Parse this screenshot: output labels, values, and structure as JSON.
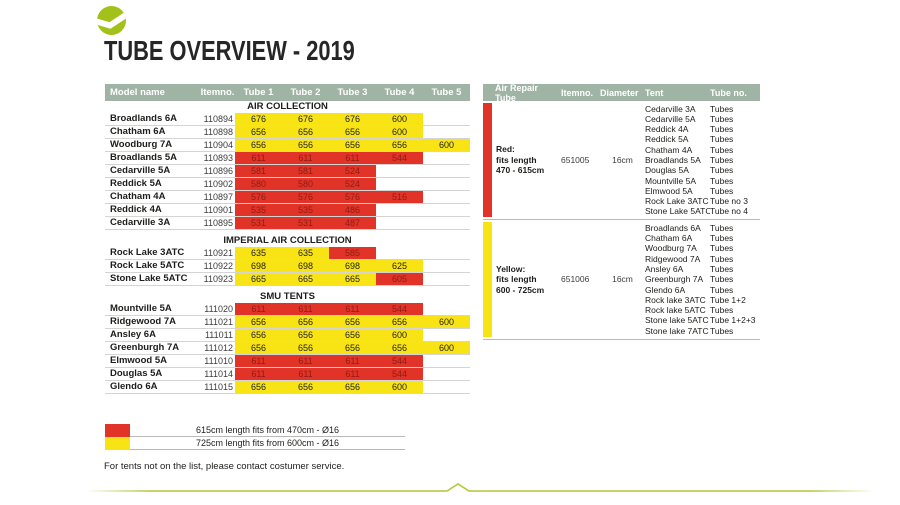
{
  "title": "TUBE OVERVIEW - 2019",
  "colors": {
    "header_bg": "#9fb4a4",
    "red": "#e13327",
    "red_text": "#8e1c13",
    "yellow": "#f8e414",
    "logo_green": "#a3c219",
    "line_green": "#b3c73a"
  },
  "left_table": {
    "headers": [
      "Model name",
      "Itemno.",
      "Tube 1",
      "Tube 2",
      "Tube 3",
      "Tube 4",
      "Tube 5"
    ],
    "sections": [
      {
        "title": "AIR COLLECTION",
        "rows": [
          {
            "model": "Broadlands 6A",
            "itemno": "110894",
            "cells": [
              [
                "676",
                "y"
              ],
              [
                "676",
                "y"
              ],
              [
                "676",
                "y"
              ],
              [
                "600",
                "y"
              ]
            ]
          },
          {
            "model": "Chatham 6A",
            "itemno": "110898",
            "cells": [
              [
                "656",
                "y"
              ],
              [
                "656",
                "y"
              ],
              [
                "656",
                "y"
              ],
              [
                "600",
                "y"
              ]
            ]
          },
          {
            "model": "Woodburg 7A",
            "itemno": "110904",
            "cells": [
              [
                "656",
                "y"
              ],
              [
                "656",
                "y"
              ],
              [
                "656",
                "y"
              ],
              [
                "656",
                "y"
              ],
              [
                "600",
                "y"
              ]
            ]
          },
          {
            "model": "Broadlands 5A",
            "itemno": "110893",
            "cells": [
              [
                "611",
                "r"
              ],
              [
                "611",
                "r"
              ],
              [
                "611",
                "r"
              ],
              [
                "544",
                "r"
              ]
            ]
          },
          {
            "model": "Cedarville 5A",
            "itemno": "110896",
            "cells": [
              [
                "581",
                "r"
              ],
              [
                "581",
                "r"
              ],
              [
                "524",
                "r"
              ]
            ]
          },
          {
            "model": "Reddick 5A",
            "itemno": "110902",
            "cells": [
              [
                "580",
                "r"
              ],
              [
                "580",
                "r"
              ],
              [
                "524",
                "r"
              ]
            ]
          },
          {
            "model": "Chatham 4A",
            "itemno": "110897",
            "cells": [
              [
                "576",
                "r"
              ],
              [
                "576",
                "r"
              ],
              [
                "576",
                "r"
              ],
              [
                "516",
                "r"
              ]
            ]
          },
          {
            "model": "Reddick 4A",
            "itemno": "110901",
            "cells": [
              [
                "535",
                "r"
              ],
              [
                "535",
                "r"
              ],
              [
                "486",
                "r"
              ]
            ]
          },
          {
            "model": "Cedarville 3A",
            "itemno": "110895",
            "cells": [
              [
                "531",
                "r"
              ],
              [
                "531",
                "r"
              ],
              [
                "487",
                "r"
              ]
            ]
          }
        ]
      },
      {
        "title": "IMPERIAL AIR COLLECTION",
        "rows": [
          {
            "model": "Rock Lake 3ATC",
            "itemno": "110921",
            "cells": [
              [
                "635",
                "y"
              ],
              [
                "635",
                "y"
              ],
              [
                "585",
                "r"
              ]
            ]
          },
          {
            "model": "Rock Lake 5ATC",
            "itemno": "110922",
            "cells": [
              [
                "698",
                "y"
              ],
              [
                "698",
                "y"
              ],
              [
                "698",
                "y"
              ],
              [
                "625",
                "y"
              ]
            ]
          },
          {
            "model": "Stone Lake 5ATC",
            "itemno": "110923",
            "cells": [
              [
                "665",
                "y"
              ],
              [
                "665",
                "y"
              ],
              [
                "665",
                "y"
              ],
              [
                "605",
                "r"
              ]
            ]
          }
        ]
      },
      {
        "title": "SMU TENTS",
        "rows": [
          {
            "model": "Mountville 5A",
            "itemno": "111020",
            "cells": [
              [
                "611",
                "r"
              ],
              [
                "611",
                "r"
              ],
              [
                "611",
                "r"
              ],
              [
                "544",
                "r"
              ]
            ]
          },
          {
            "model": "Ridgewood 7A",
            "itemno": "111021",
            "cells": [
              [
                "656",
                "y"
              ],
              [
                "656",
                "y"
              ],
              [
                "656",
                "y"
              ],
              [
                "656",
                "y"
              ],
              [
                "600",
                "y"
              ]
            ]
          },
          {
            "model": "Ansley 6A",
            "itemno": "111011",
            "cells": [
              [
                "656",
                "y"
              ],
              [
                "656",
                "y"
              ],
              [
                "656",
                "y"
              ],
              [
                "600",
                "y"
              ]
            ]
          },
          {
            "model": "Greenburgh 7A",
            "itemno": "111012",
            "cells": [
              [
                "656",
                "y"
              ],
              [
                "656",
                "y"
              ],
              [
                "656",
                "y"
              ],
              [
                "656",
                "y"
              ],
              [
                "600",
                "y"
              ]
            ]
          },
          {
            "model": "Elmwood 5A",
            "itemno": "111010",
            "cells": [
              [
                "611",
                "r"
              ],
              [
                "611",
                "r"
              ],
              [
                "611",
                "r"
              ],
              [
                "544",
                "r"
              ]
            ]
          },
          {
            "model": "Douglas 5A",
            "itemno": "111014",
            "cells": [
              [
                "611",
                "r"
              ],
              [
                "611",
                "r"
              ],
              [
                "611",
                "r"
              ],
              [
                "544",
                "r"
              ]
            ]
          },
          {
            "model": "Glendo 6A",
            "itemno": "111015",
            "cells": [
              [
                "656",
                "y"
              ],
              [
                "656",
                "y"
              ],
              [
                "656",
                "y"
              ],
              [
                "600",
                "y"
              ]
            ]
          }
        ]
      }
    ]
  },
  "right_table": {
    "headers": [
      "Air Repair Tube",
      "Itemno.",
      "Diameter",
      "Tent",
      "Tube no."
    ],
    "groups": [
      {
        "color": "red",
        "name": "Red:",
        "fits": [
          "fits length",
          "470 - 615cm"
        ],
        "itemno": "651005",
        "diameter": "16cm",
        "tents": [
          {
            "tent": "Cedarville 3A",
            "tube_no": "Tubes"
          },
          {
            "tent": "Cedarville 5A",
            "tube_no": "Tubes"
          },
          {
            "tent": "Reddick 4A",
            "tube_no": "Tubes"
          },
          {
            "tent": "Reddick 5A",
            "tube_no": "Tubes"
          },
          {
            "tent": "Chatham 4A",
            "tube_no": "Tubes"
          },
          {
            "tent": "Broadlands 5A",
            "tube_no": "Tubes"
          },
          {
            "tent": "Douglas 5A",
            "tube_no": "Tubes"
          },
          {
            "tent": "Mountville 5A",
            "tube_no": "Tubes"
          },
          {
            "tent": "Elmwood 5A",
            "tube_no": "Tubes"
          },
          {
            "tent": "Rock Lake 3ATC",
            "tube_no": "Tube no 3"
          },
          {
            "tent": "Stone Lake 5ATC",
            "tube_no": "Tube no 4"
          }
        ]
      },
      {
        "color": "yellow",
        "name": "Yellow:",
        "fits": [
          "fits length",
          "600 - 725cm"
        ],
        "itemno": "651006",
        "diameter": "16cm",
        "tents": [
          {
            "tent": "Broadlands 6A",
            "tube_no": "Tubes"
          },
          {
            "tent": "Chatham 6A",
            "tube_no": "Tubes"
          },
          {
            "tent": "Woodburg 7A",
            "tube_no": "Tubes"
          },
          {
            "tent": "Ridgewood 7A",
            "tube_no": "Tubes"
          },
          {
            "tent": "Ansley 6A",
            "tube_no": "Tubes"
          },
          {
            "tent": "Greenburgh 7A",
            "tube_no": "Tubes"
          },
          {
            "tent": "Glendo 6A",
            "tube_no": "Tubes"
          },
          {
            "tent": "Rock lake 3ATC",
            "tube_no": "Tube 1+2"
          },
          {
            "tent": "Rock lake 5ATC",
            "tube_no": "Tubes"
          },
          {
            "tent": "Stone lake 5ATC",
            "tube_no": "Tube 1+2+3"
          },
          {
            "tent": "Stone lake 7ATC",
            "tube_no": "Tubes"
          }
        ]
      }
    ]
  },
  "legend": [
    {
      "color": "red",
      "text": "615cm length fits from 470cm - Ø16"
    },
    {
      "color": "yellow",
      "text": "725cm length fits from 600cm - Ø16"
    }
  ],
  "footer_note": "For tents not on the list, please contact costumer service."
}
